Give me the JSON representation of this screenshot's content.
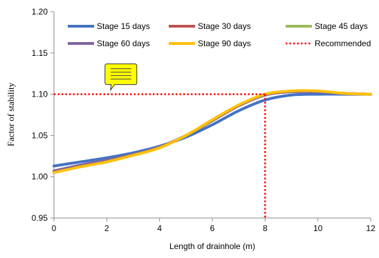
{
  "chart_data": {
    "type": "line",
    "xlabel": "Length of drainhole (m)",
    "ylabel": "Factor of stability",
    "xlim": [
      0,
      12
    ],
    "ylim": [
      0.95,
      1.2
    ],
    "x_ticks": [
      0,
      2,
      4,
      6,
      8,
      10,
      12
    ],
    "y_ticks": [
      "0.95",
      "1.00",
      "1.05",
      "1.10",
      "1.15",
      "1.20"
    ],
    "grid": false,
    "legend": {
      "placement": "top",
      "columns": 3
    },
    "series": [
      {
        "name": "Stage 15 days",
        "color": "#4472C4",
        "x": [
          0,
          1,
          2,
          3,
          4,
          5,
          6,
          7,
          8,
          9,
          10,
          11,
          12
        ],
        "y": [
          1.013,
          1.018,
          1.023,
          1.029,
          1.037,
          1.048,
          1.063,
          1.08,
          1.093,
          1.099,
          1.1,
          1.1,
          1.1
        ]
      },
      {
        "name": "Stage 30 days",
        "color": "#C0504D",
        "x": [
          0,
          1,
          2,
          3,
          4,
          5,
          6,
          7,
          8,
          9,
          10,
          11,
          12
        ],
        "y": [
          1.007,
          1.014,
          1.02,
          1.027,
          1.036,
          1.05,
          1.068,
          1.086,
          1.099,
          1.103,
          1.103,
          1.101,
          1.1
        ]
      },
      {
        "name": "Stage 45 days",
        "color": "#9BBB59",
        "x": [
          0,
          1,
          2,
          3,
          4,
          5,
          6,
          7,
          8,
          9,
          10,
          11,
          12
        ],
        "y": [
          1.007,
          1.014,
          1.02,
          1.027,
          1.036,
          1.05,
          1.068,
          1.086,
          1.099,
          1.103,
          1.103,
          1.101,
          1.1
        ]
      },
      {
        "name": "Stage 60 days",
        "color": "#8064A2",
        "x": [
          0,
          1,
          2,
          3,
          4,
          5,
          6,
          7,
          8,
          9,
          10,
          11,
          12
        ],
        "y": [
          1.007,
          1.014,
          1.02,
          1.027,
          1.036,
          1.05,
          1.068,
          1.086,
          1.099,
          1.103,
          1.103,
          1.101,
          1.1
        ]
      },
      {
        "name": "Stage 90 days",
        "color": "#FFC000",
        "x": [
          0,
          1,
          2,
          3,
          4,
          5,
          6,
          7,
          8,
          9,
          10,
          11,
          12
        ],
        "y": [
          1.005,
          1.012,
          1.018,
          1.026,
          1.035,
          1.05,
          1.069,
          1.087,
          1.1,
          1.104,
          1.104,
          1.101,
          1.1
        ]
      }
    ],
    "reference": {
      "name": "Recommended",
      "color": "#FF0000",
      "style": "dotted",
      "horizontal_y": 1.1,
      "vertical_x": 8
    },
    "annotation": {
      "type": "note-icon",
      "color": "#FFFF00",
      "anchor_x": 2.3,
      "anchor_y": 1.1
    }
  }
}
